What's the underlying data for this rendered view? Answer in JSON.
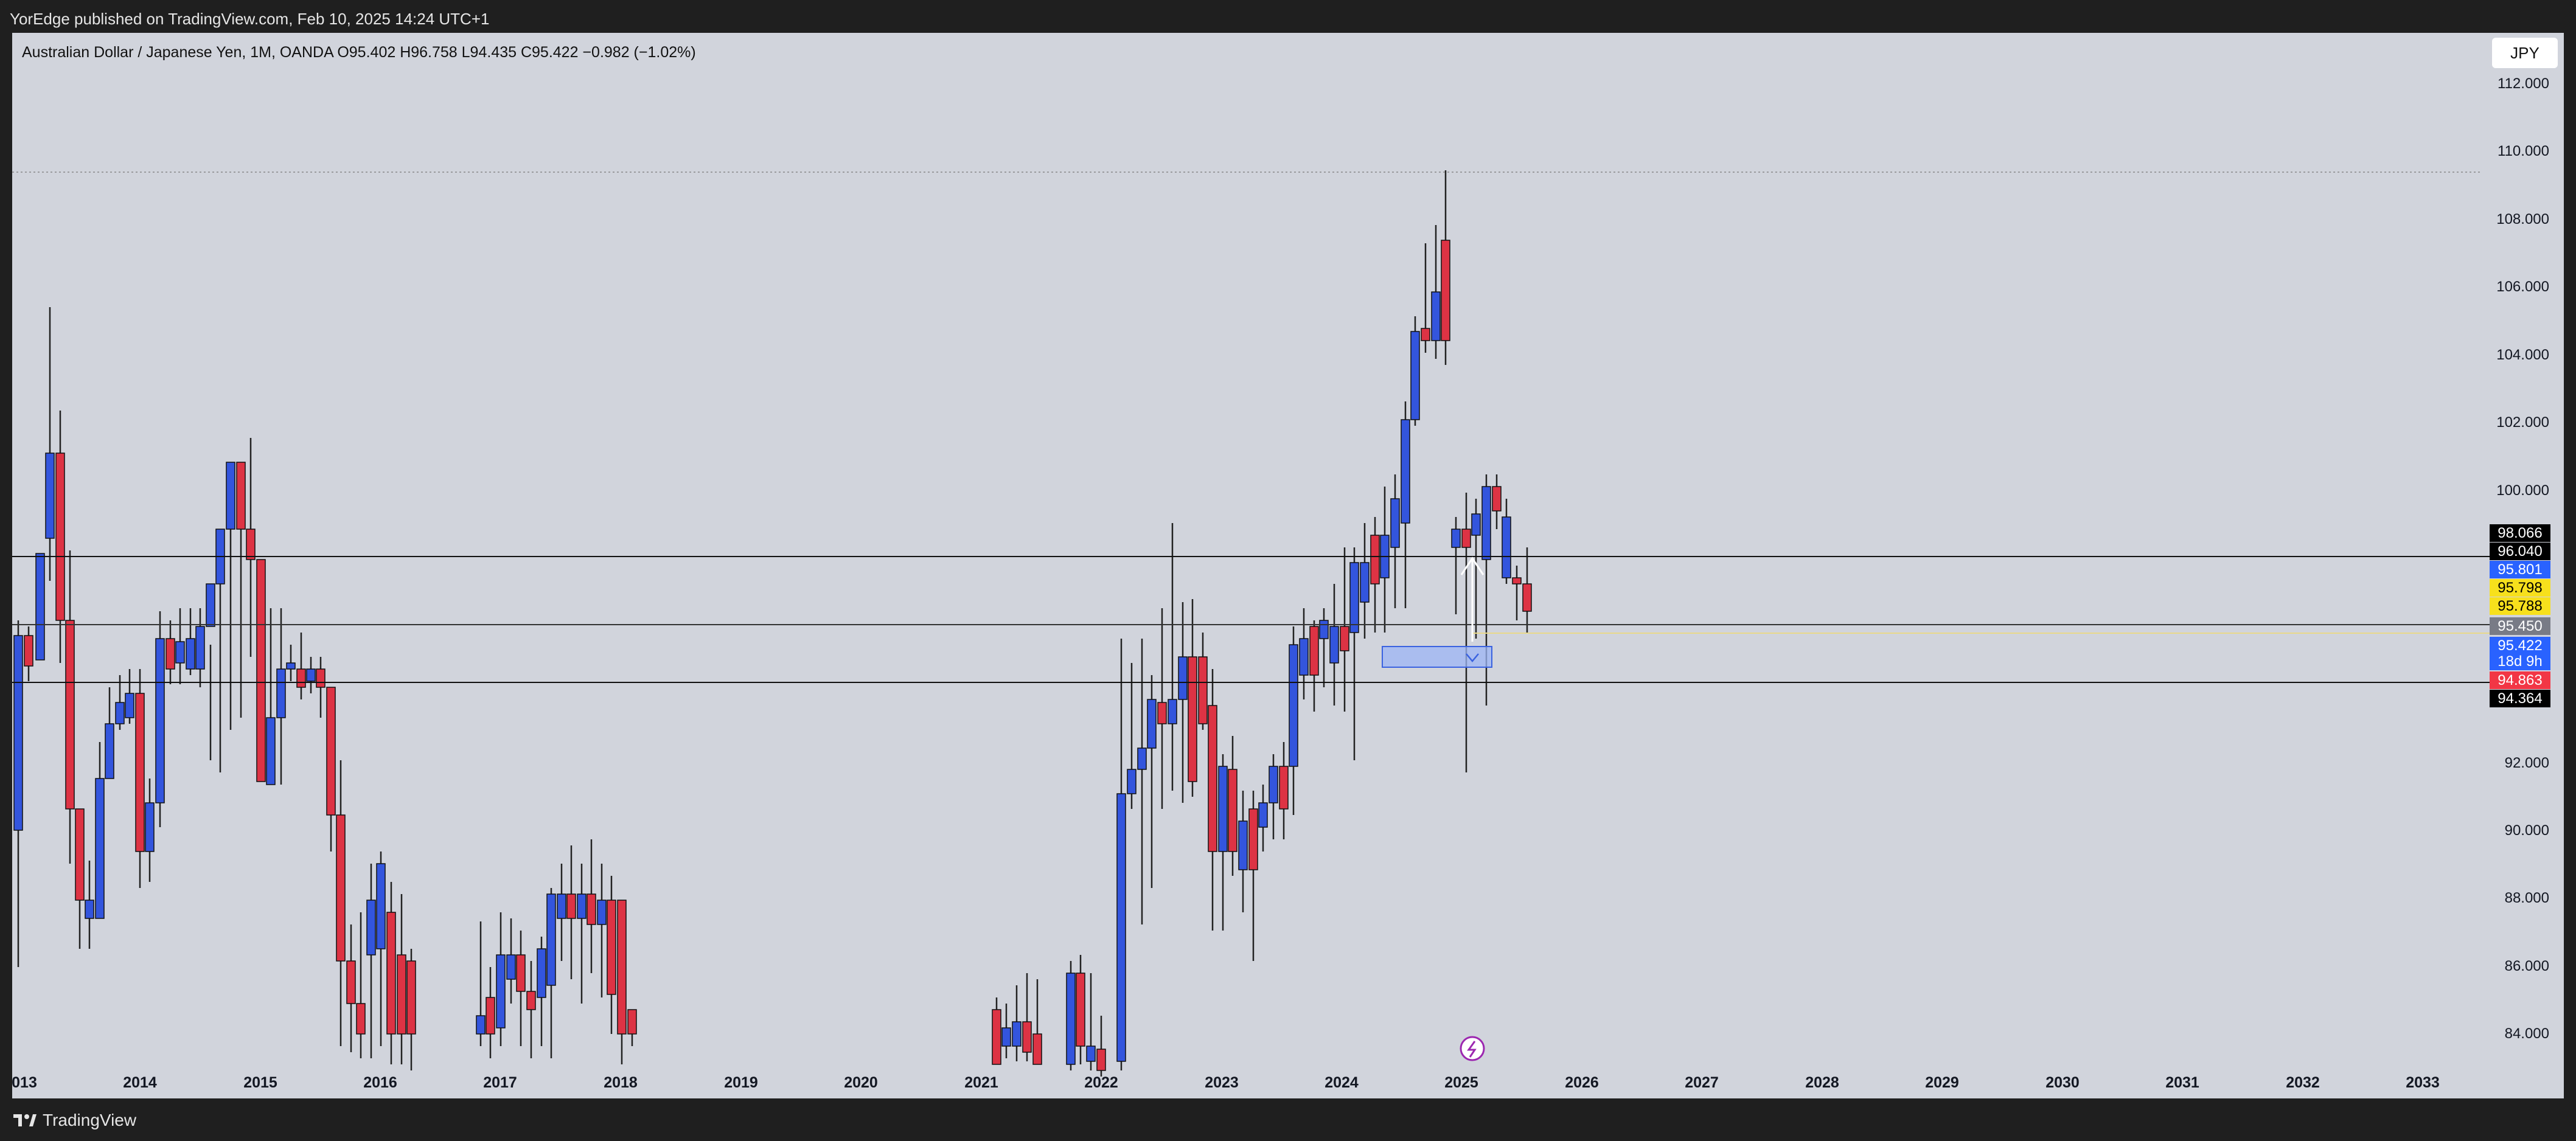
{
  "header": {
    "published": "YorEdge published on TradingView.com, Feb 10, 2025 14:24 UTC+1"
  },
  "legend": {
    "text": "Australian Dollar / Japanese Yen, 1M, OANDA  O95.402  H96.758  L94.435  C95.422  −0.982 (−1.02%)"
  },
  "currency_button": {
    "label": "JPY"
  },
  "footer": {
    "brand": "TradingView"
  },
  "colors": {
    "background": "#d1d4dc",
    "up": "#3355dd",
    "down": "#dd3344",
    "frame": "#1f1f1f"
  },
  "chart_data": {
    "type": "candlestick",
    "symbol": "AUDJPY",
    "interval": "1M",
    "y_ticks": [
      "112.000",
      "110.000",
      "108.000",
      "106.000",
      "104.000",
      "102.000",
      "100.000",
      "92.000",
      "90.000",
      "88.000",
      "86.000",
      "84.000"
    ],
    "x_ticks": [
      "013",
      "2014",
      "2015",
      "2016",
      "2017",
      "2018",
      "2019",
      "2020",
      "2021",
      "2022",
      "2023",
      "2024",
      "2025",
      "2026",
      "2027",
      "2028",
      "2029",
      "2030",
      "2031",
      "2032",
      "2033"
    ],
    "horizontal_lines": [
      96.04,
      94.364,
      95.45
    ],
    "price_labels": [
      {
        "text": "98.066",
        "bg": "#000000",
        "fg": "#ffffff"
      },
      {
        "text": "96.040",
        "bg": "#000000",
        "fg": "#ffffff"
      },
      {
        "text": "95.801",
        "bg": "#2962ff",
        "fg": "#ffffff"
      },
      {
        "text": "95.798",
        "bg": "#f7e01c",
        "fg": "#000000"
      },
      {
        "text": "95.788",
        "bg": "#f7e01c",
        "fg": "#000000"
      },
      {
        "text": "95.450",
        "bg": "#787b86",
        "fg": "#ffffff"
      },
      {
        "text": "95.422",
        "bg": "#2962ff",
        "fg": "#ffffff"
      },
      {
        "text": "18d 9h",
        "bg": "#2962ff",
        "fg": "#ffffff"
      },
      {
        "text": "94.863",
        "bg": "#f23645",
        "fg": "#ffffff"
      },
      {
        "text": "94.364",
        "bg": "#000000",
        "fg": "#ffffff"
      }
    ]
  }
}
